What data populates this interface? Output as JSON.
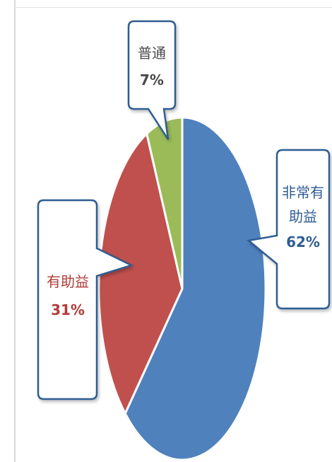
{
  "chart_data": {
    "type": "pie",
    "title": "",
    "slices": [
      {
        "label": "非常有助益",
        "display": [
          "非常有",
          "助益"
        ],
        "value": 62,
        "value_label": "62%",
        "color": "#4f81bd",
        "text_color": "#2f5d92"
      },
      {
        "label": "有助益",
        "display": [
          "有助益"
        ],
        "value": 31,
        "value_label": "31%",
        "color": "#c0504d",
        "text_color": "#b03b38"
      },
      {
        "label": "普通",
        "display": [
          "普通"
        ],
        "value": 7,
        "value_label": "7%",
        "color": "#9bbb59",
        "text_color": "#4a4a4a"
      }
    ]
  }
}
